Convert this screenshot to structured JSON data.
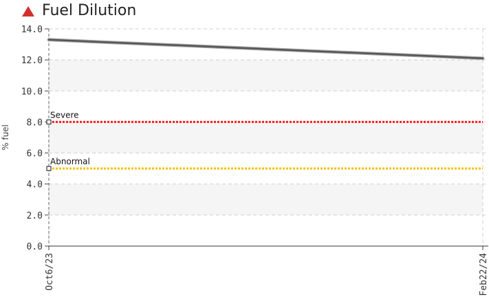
{
  "title": "Fuel Dilution",
  "colors": {
    "alert": "#d32f2f",
    "severe": "#ff1a1a",
    "abnormal": "#f2c200",
    "series": "#555555"
  },
  "chart_data": {
    "type": "line",
    "ylabel": "% fuel",
    "ylim": [
      0,
      14
    ],
    "yticks": [
      "0.0",
      "2.0",
      "4.0",
      "6.0",
      "8.0",
      "10.0",
      "12.0",
      "14.0"
    ],
    "categories": [
      "Oct6/23",
      "Feb22/24"
    ],
    "series": [
      {
        "values": [
          13.3,
          12.1
        ]
      }
    ],
    "thresholds": [
      {
        "name": "Severe",
        "value": 8.0
      },
      {
        "name": "Abnormal",
        "value": 5.0
      }
    ],
    "grid": true
  }
}
